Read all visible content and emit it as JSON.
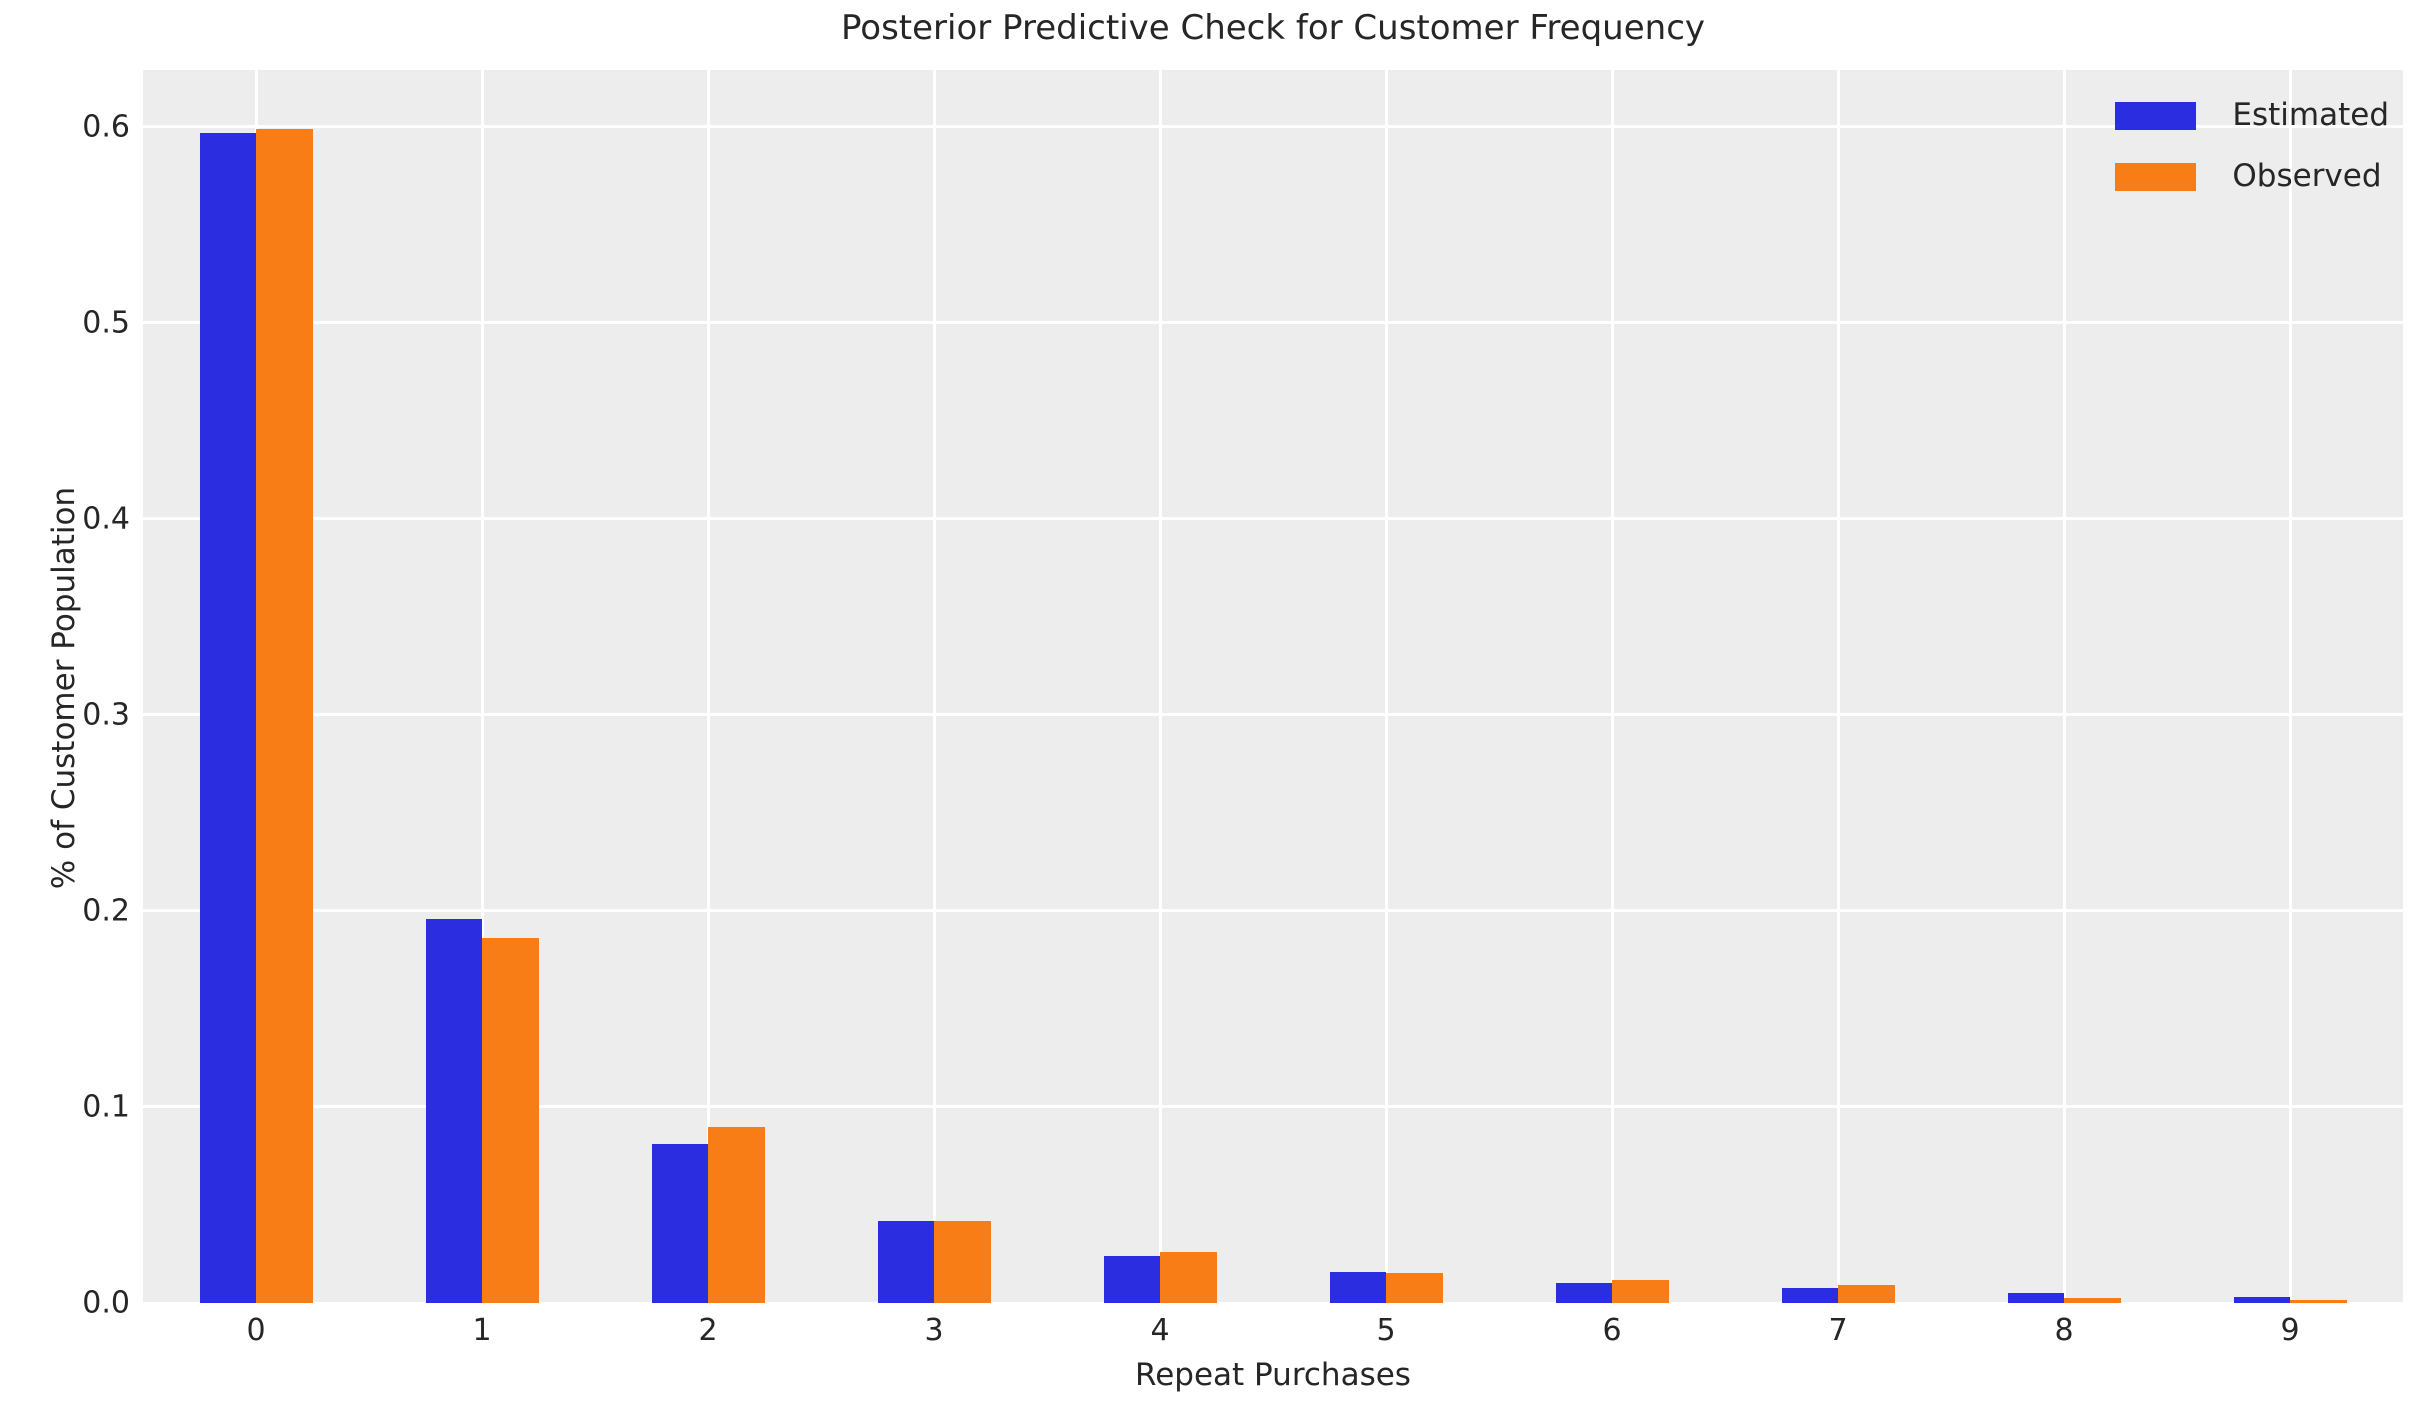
{
  "chart_data": {
    "type": "bar",
    "title": "Posterior Predictive Check for Customer Frequency",
    "xlabel": "Repeat Purchases",
    "ylabel": "% of Customer Population",
    "categories": [
      "0",
      "1",
      "2",
      "3",
      "4",
      "5",
      "6",
      "7",
      "8",
      "9"
    ],
    "series": [
      {
        "name": "Estimated",
        "color": "#2a2de0",
        "values": [
          0.597,
          0.196,
          0.081,
          0.042,
          0.024,
          0.016,
          0.0104,
          0.0075,
          0.005,
          0.003
        ]
      },
      {
        "name": "Observed",
        "color": "#f87d16",
        "values": [
          0.599,
          0.186,
          0.09,
          0.042,
          0.026,
          0.0155,
          0.0116,
          0.009,
          0.0025,
          0.0015
        ]
      }
    ],
    "y_ticks": [
      0.0,
      0.1,
      0.2,
      0.3,
      0.4,
      0.5,
      0.6
    ],
    "y_tick_labels": [
      "0.0",
      "0.1",
      "0.2",
      "0.3",
      "0.4",
      "0.5",
      "0.6"
    ],
    "ylim": [
      0,
      0.629
    ],
    "grid": true,
    "plot_background": "#ededed",
    "grid_color": "#ffffff",
    "text_color": "#262626",
    "legend_position": "upper right"
  },
  "legend": {
    "items": [
      {
        "label": "Estimated",
        "color": "#2a2de0"
      },
      {
        "label": "Observed",
        "color": "#f87d16"
      }
    ]
  }
}
